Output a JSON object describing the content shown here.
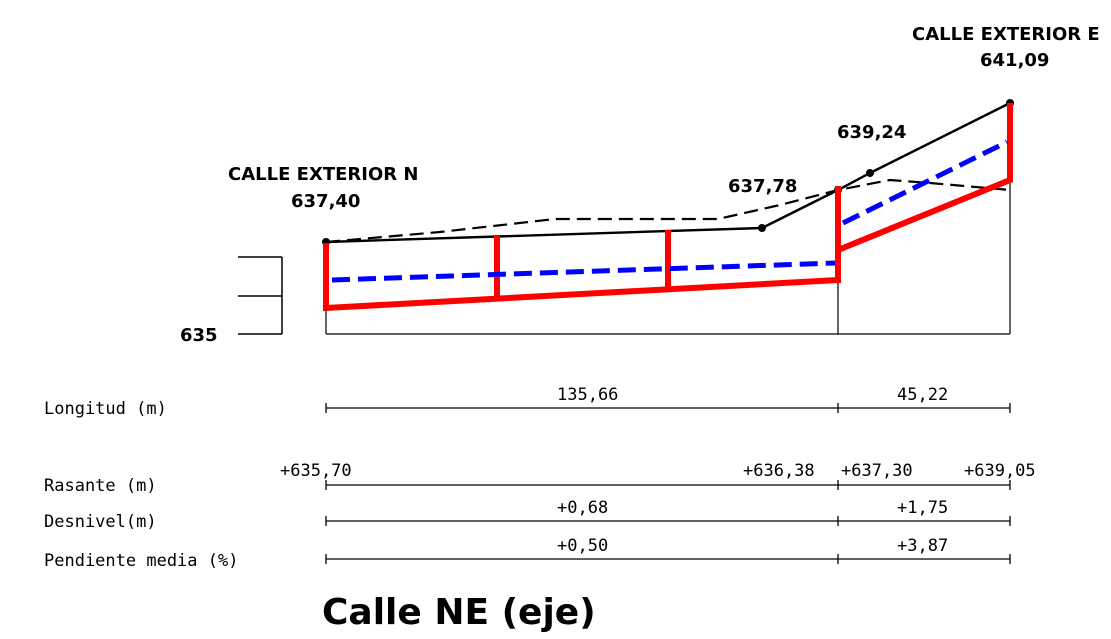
{
  "profile": {
    "left_street": {
      "name": "CALLE EXTERIOR N",
      "elevation": "637,40"
    },
    "right_street": {
      "name": "CALLE EXTERIOR E",
      "elevation": "641,09"
    },
    "point_mid_left": "637,78",
    "point_mid_right": "639,24",
    "datum_label": "635"
  },
  "colors": {
    "structure": "#ff0000",
    "rasante": "#0000ff",
    "terrain": "#000000"
  },
  "table": {
    "rows": {
      "longitud": "Longitud (m)",
      "rasante": "Rasante (m)",
      "desnivel": "Desnivel(m)",
      "pendiente": "Pendiente media (%)"
    },
    "longitud_values": [
      "135,66",
      "45,22"
    ],
    "rasante_values": [
      "+635,70",
      "+636,38",
      "+637,30",
      "+639,05"
    ],
    "desnivel_values": [
      "+0,68",
      "+1,75"
    ],
    "pendiente_values": [
      "+0,50",
      "+3,87"
    ]
  },
  "title": "Calle NE (eje)"
}
